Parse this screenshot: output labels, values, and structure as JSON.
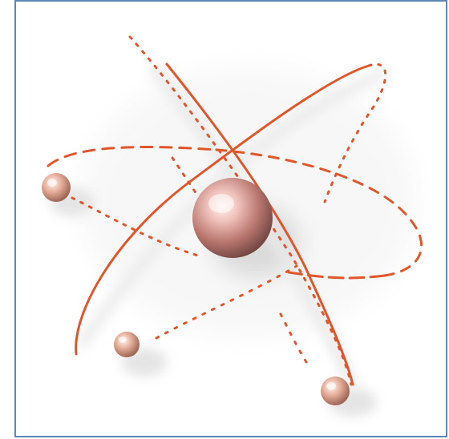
{
  "image": {
    "subject": "atom-icon",
    "colors": {
      "frame_border": "#5b86b8",
      "orbit": "#e0562a",
      "nucleus_light": "#fbe3df",
      "nucleus_mid": "#c98a83",
      "nucleus_dark": "#6e4340",
      "background": "#ffffff"
    }
  }
}
